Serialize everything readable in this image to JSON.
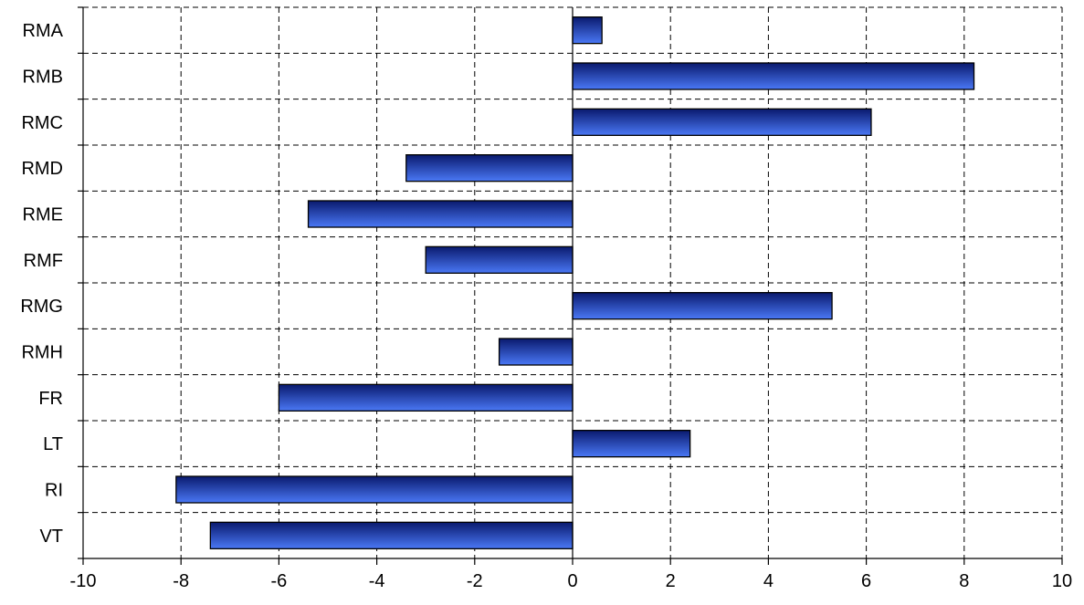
{
  "chart_data": {
    "type": "bar",
    "orientation": "horizontal",
    "title": "",
    "xlabel": "",
    "ylabel": "",
    "categories": [
      "RMA",
      "RMB",
      "RMC",
      "RMD",
      "RME",
      "RMF",
      "RMG",
      "RMH",
      "FR",
      "LT",
      "RI",
      "VT"
    ],
    "values": [
      0.6,
      8.2,
      6.1,
      -3.4,
      -5.4,
      -3.0,
      5.3,
      -1.5,
      -6.0,
      2.4,
      -8.1,
      -7.4
    ],
    "xlim": [
      -10,
      10
    ],
    "xticks": [
      -10,
      -8,
      -6,
      -4,
      -2,
      0,
      2,
      4,
      6,
      8,
      10
    ],
    "xtick_labels": [
      "-10",
      "-8",
      "-6",
      "-4",
      "-2",
      "0",
      "2",
      "4",
      "6",
      "8",
      "10"
    ],
    "grid": true,
    "legend": "none",
    "colors": {
      "bar_dark": "#0a1a6e",
      "bar_light": "#4a78f5",
      "border": "#000000"
    }
  }
}
